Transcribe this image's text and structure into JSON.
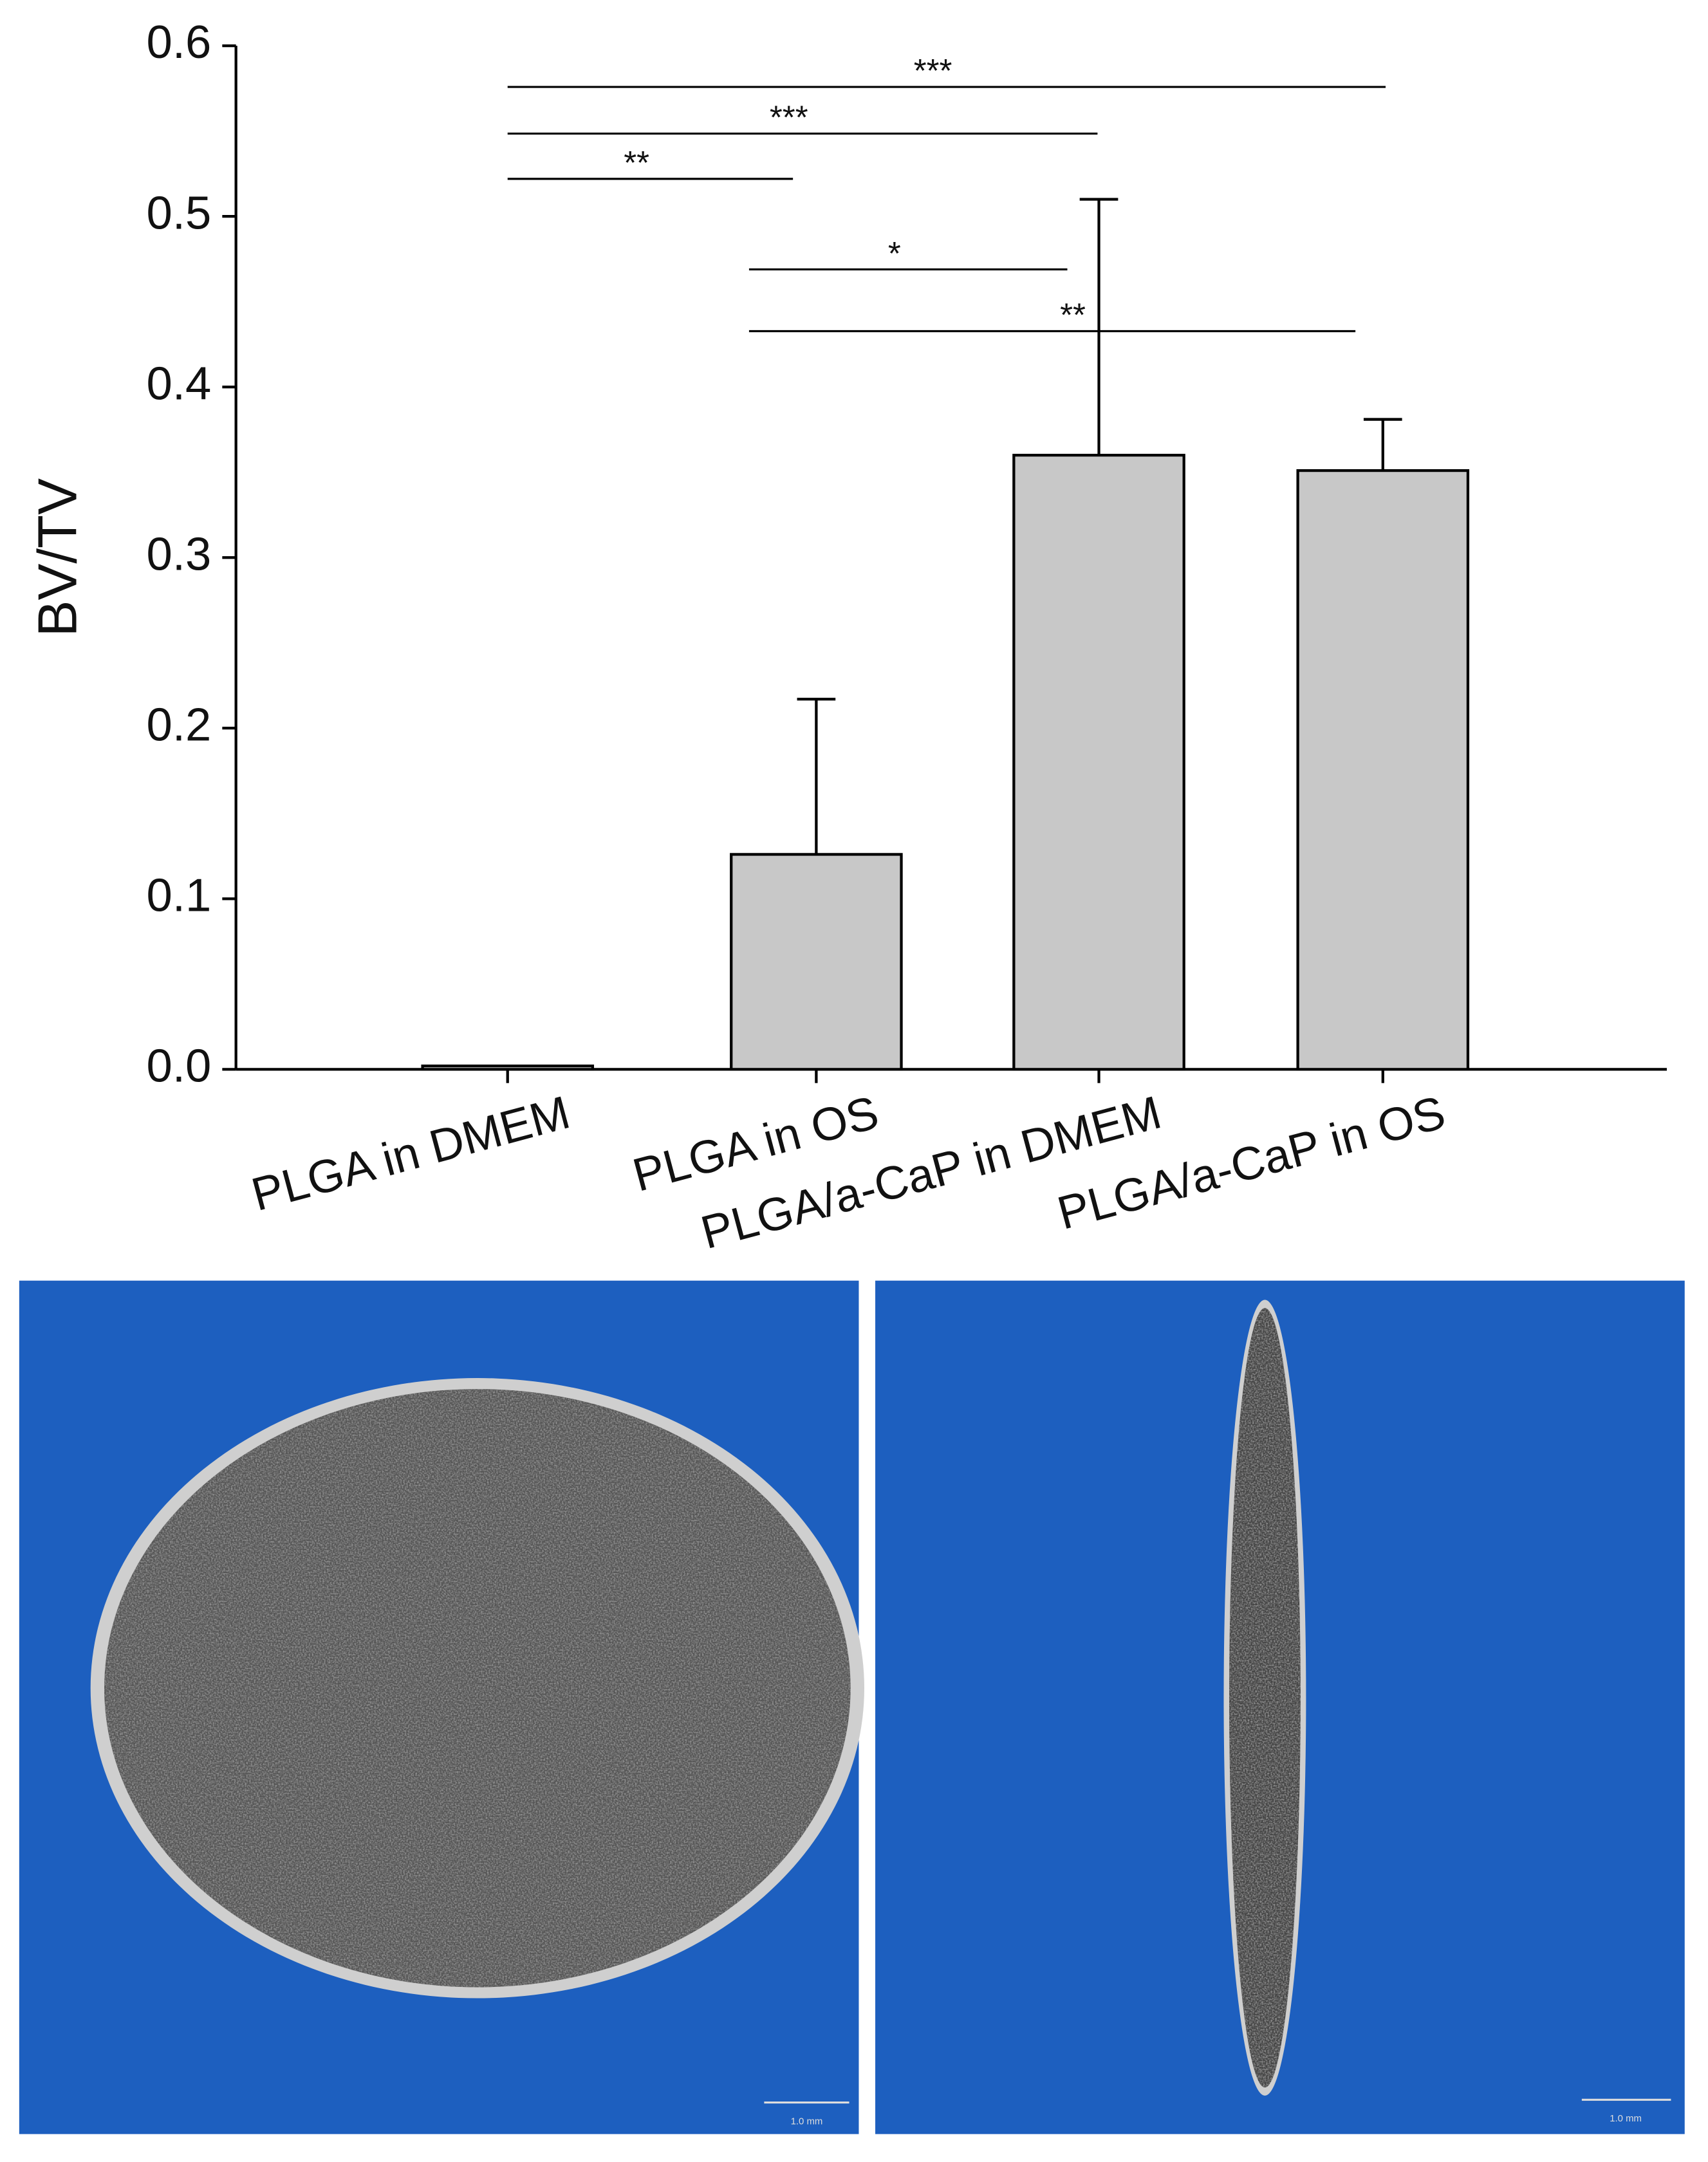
{
  "chart_data": {
    "type": "bar",
    "y_label": "BV/TV",
    "categories": [
      "PLGA in DMEM",
      "PLGA in OS",
      "PLGA/a-CaP in DMEM",
      "PLGA/a-CaP in OS"
    ],
    "values": [
      0.002,
      0.126,
      0.36,
      0.351
    ],
    "errors": [
      0,
      0.091,
      0.15,
      0.03
    ],
    "color": "#c8c8c8",
    "ylim": [
      0,
      0.6
    ],
    "yticks": [
      {
        "value": 0,
        "label": "0.0"
      },
      0.1,
      0.2,
      0.3,
      0.4,
      0.5,
      0.6
    ],
    "annotations": [
      "***",
      "***",
      "**",
      "*",
      "**"
    ]
  },
  "images": {
    "scale_labels": [
      "1.0 mm",
      "1.0 mm"
    ]
  }
}
